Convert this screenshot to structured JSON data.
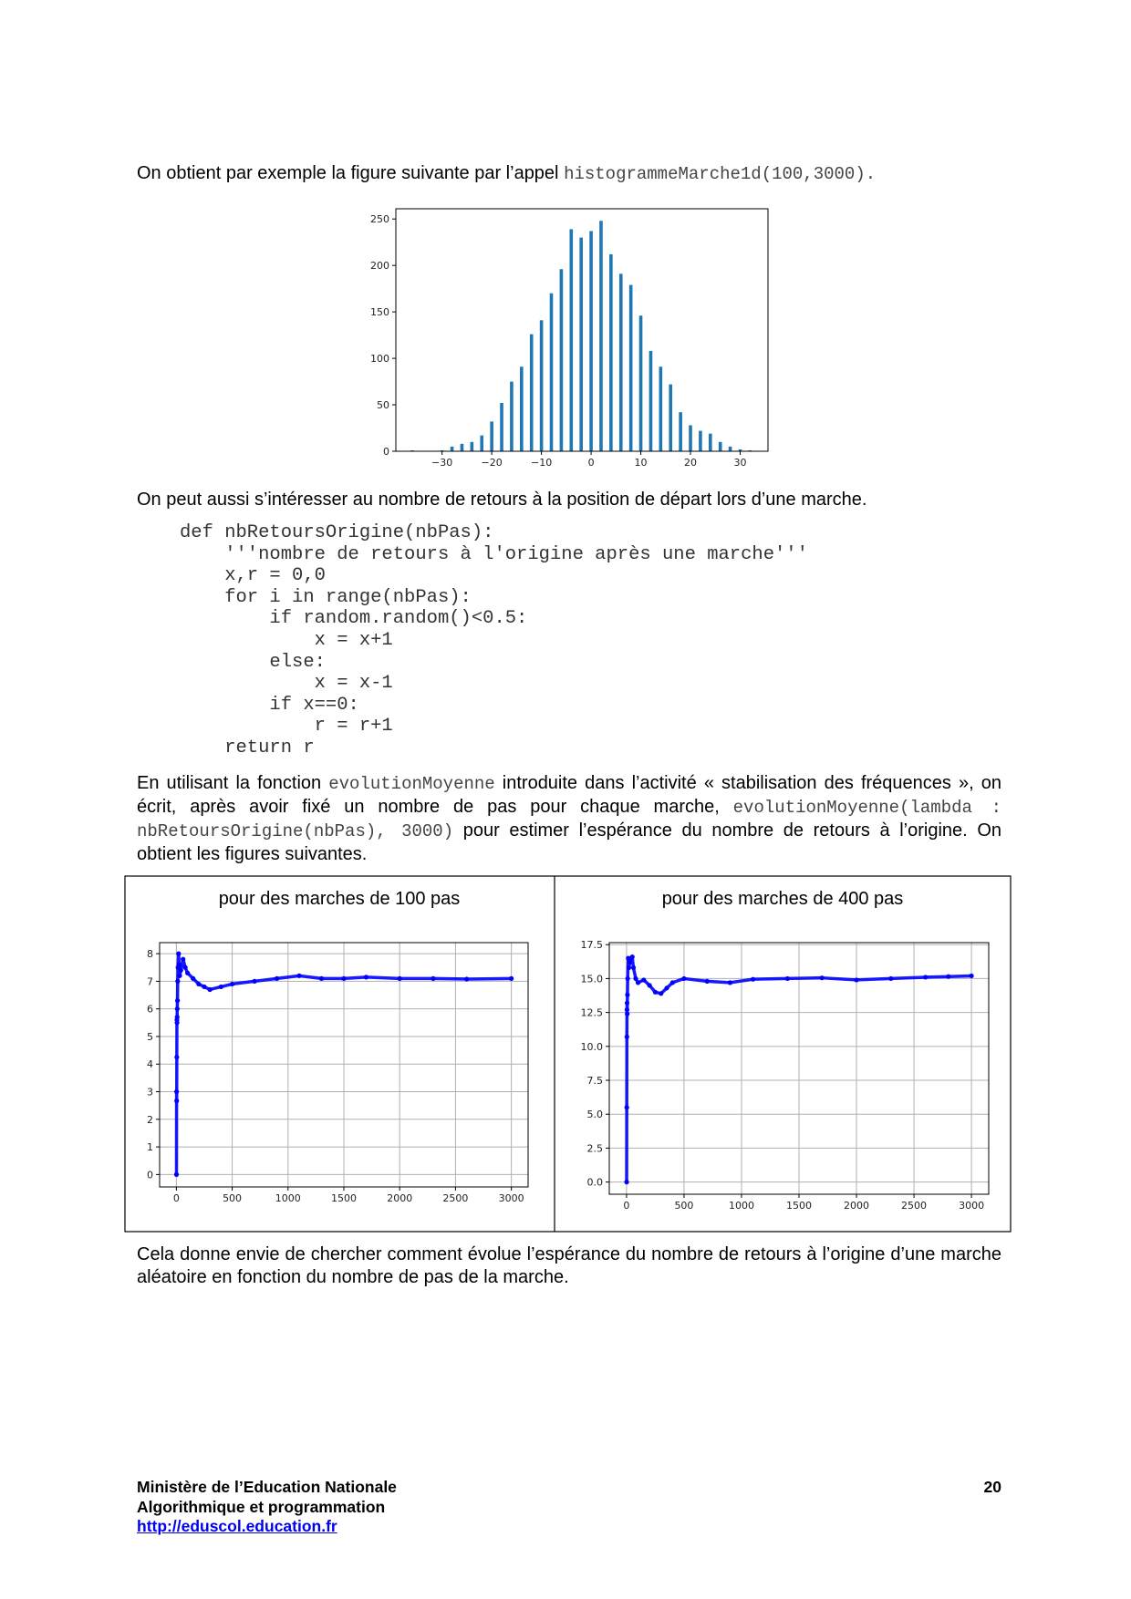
{
  "intro": {
    "text": "On obtient par exemple la figure suivante par l’appel",
    "code": "histogrammeMarche1d(100,3000)."
  },
  "para2": "On peut aussi s’intéresser au nombre de retours à la position de départ lors d’une marche.",
  "code": [
    "def nbRetoursOrigine(nbPas):",
    "    '''nombre de retours à l'origine après une marche'''",
    "    x,r = 0,0",
    "    for i in range(nbPas):",
    "        if random.random()<0.5:",
    "            x = x+1",
    "        else:",
    "            x = x-1",
    "        if x==0:",
    "            r = r+1",
    "    return r"
  ],
  "para3": [
    "En utilisant la fonction",
    "evolutionMoyenne",
    "introduite dans l’activité « stabilisation des fréquences », on écrit, après avoir fixé un nombre de pas pour chaque marche,",
    "evolutionMoyenne(lambda : nbRetoursOrigine(nbPas), 3000)",
    "pour estimer l’espérance du nombre de retours à l’origine. On obtient les figures suivantes."
  ],
  "para4": "Cela donne envie de chercher comment évolue l’espérance du nombre de retours à l’origine d’une marche aléatoire en fonction du nombre de pas de la marche.",
  "footer": {
    "lines": [
      "Ministère de l’Education Nationale",
      "Algorithmique et programmation"
    ],
    "link": "http://eduscol.education.fr",
    "page": 20
  },
  "chart_data": [
    {
      "type": "bar",
      "color": "#1f77b4",
      "grid": false,
      "x": [
        -36,
        -30,
        -28,
        -26,
        -24,
        -22,
        -20,
        -18,
        -16,
        -14,
        -12,
        -10,
        -8,
        -6,
        -4,
        -2,
        0,
        2,
        4,
        6,
        8,
        10,
        12,
        14,
        16,
        18,
        20,
        22,
        24,
        26,
        28,
        30,
        32
      ],
      "values": [
        1,
        1,
        5,
        8,
        10,
        17,
        32,
        52,
        75,
        91,
        126,
        141,
        170,
        196,
        239,
        230,
        237,
        248,
        212,
        191,
        179,
        146,
        108,
        91,
        72,
        42,
        28,
        22,
        19,
        10,
        5,
        2,
        1
      ],
      "xlim": [
        -39.3,
        35.6
      ],
      "ylim": [
        0,
        261
      ],
      "xticks": [
        {
          "value": -30,
          "label": "−30"
        },
        {
          "value": -20,
          "label": "−20"
        },
        {
          "value": -10,
          "label": "−10"
        },
        0,
        10,
        20,
        30
      ],
      "yticks": [
        0,
        50,
        100,
        150,
        200,
        250
      ]
    },
    {
      "type": "scatter",
      "title": "pour des marches de 100 pas",
      "color": "#0000ff",
      "grid": true,
      "x": [
        1,
        2,
        3,
        4,
        5,
        6,
        7,
        8,
        10,
        12,
        15,
        20,
        25,
        30,
        40,
        60,
        80,
        100,
        150,
        200,
        250,
        300,
        400,
        500,
        700,
        900,
        1100,
        1300,
        1500,
        1700,
        2000,
        2300,
        2600,
        3000
      ],
      "y": [
        0,
        3,
        2.67,
        4.25,
        5.6,
        5.5,
        5.7,
        6,
        6.3,
        7,
        7.5,
        8,
        7.6,
        7.2,
        7.4,
        7.8,
        7.5,
        7.3,
        7.1,
        6.9,
        6.8,
        6.7,
        6.8,
        6.9,
        7.0,
        7.1,
        7.2,
        7.1,
        7.1,
        7.15,
        7.1,
        7.1,
        7.08,
        7.1
      ],
      "xlim": [
        -150,
        3150
      ],
      "ylim": [
        -0.45,
        8.4
      ],
      "xticks": [
        0,
        500,
        1000,
        1500,
        2000,
        2500,
        3000
      ],
      "yticks": [
        0,
        1,
        2,
        3,
        4,
        5,
        6,
        7,
        8
      ]
    },
    {
      "type": "scatter",
      "title": "pour des marches de 400 pas",
      "color": "#0000ff",
      "grid": true,
      "x": [
        1,
        2,
        3,
        4,
        5,
        6,
        8,
        10,
        15,
        20,
        30,
        40,
        50,
        60,
        80,
        100,
        150,
        200,
        250,
        300,
        350,
        400,
        500,
        700,
        900,
        1100,
        1400,
        1700,
        2000,
        2300,
        2600,
        2800,
        3000
      ],
      "y": [
        0,
        5.5,
        10.7,
        12.7,
        13.2,
        12.4,
        13.8,
        15,
        16.5,
        15.8,
        16.2,
        16.5,
        16.6,
        15.8,
        15,
        14.7,
        14.9,
        14.5,
        14.0,
        13.9,
        14.3,
        14.7,
        15.0,
        14.8,
        14.7,
        14.95,
        15.0,
        15.05,
        14.9,
        15.0,
        15.1,
        15.15,
        15.2
      ],
      "xlim": [
        -150,
        3150
      ],
      "ylim": [
        -0.9,
        17.65
      ],
      "xticks": [
        0,
        500,
        1000,
        1500,
        2000,
        2500,
        3000
      ],
      "yticks": [
        {
          "value": 0,
          "label": "0.0"
        },
        2.5,
        {
          "value": 5,
          "label": "5.0"
        },
        7.5,
        {
          "value": 10,
          "label": "10.0"
        },
        12.5,
        {
          "value": 15,
          "label": "15.0"
        },
        17.5
      ]
    }
  ]
}
